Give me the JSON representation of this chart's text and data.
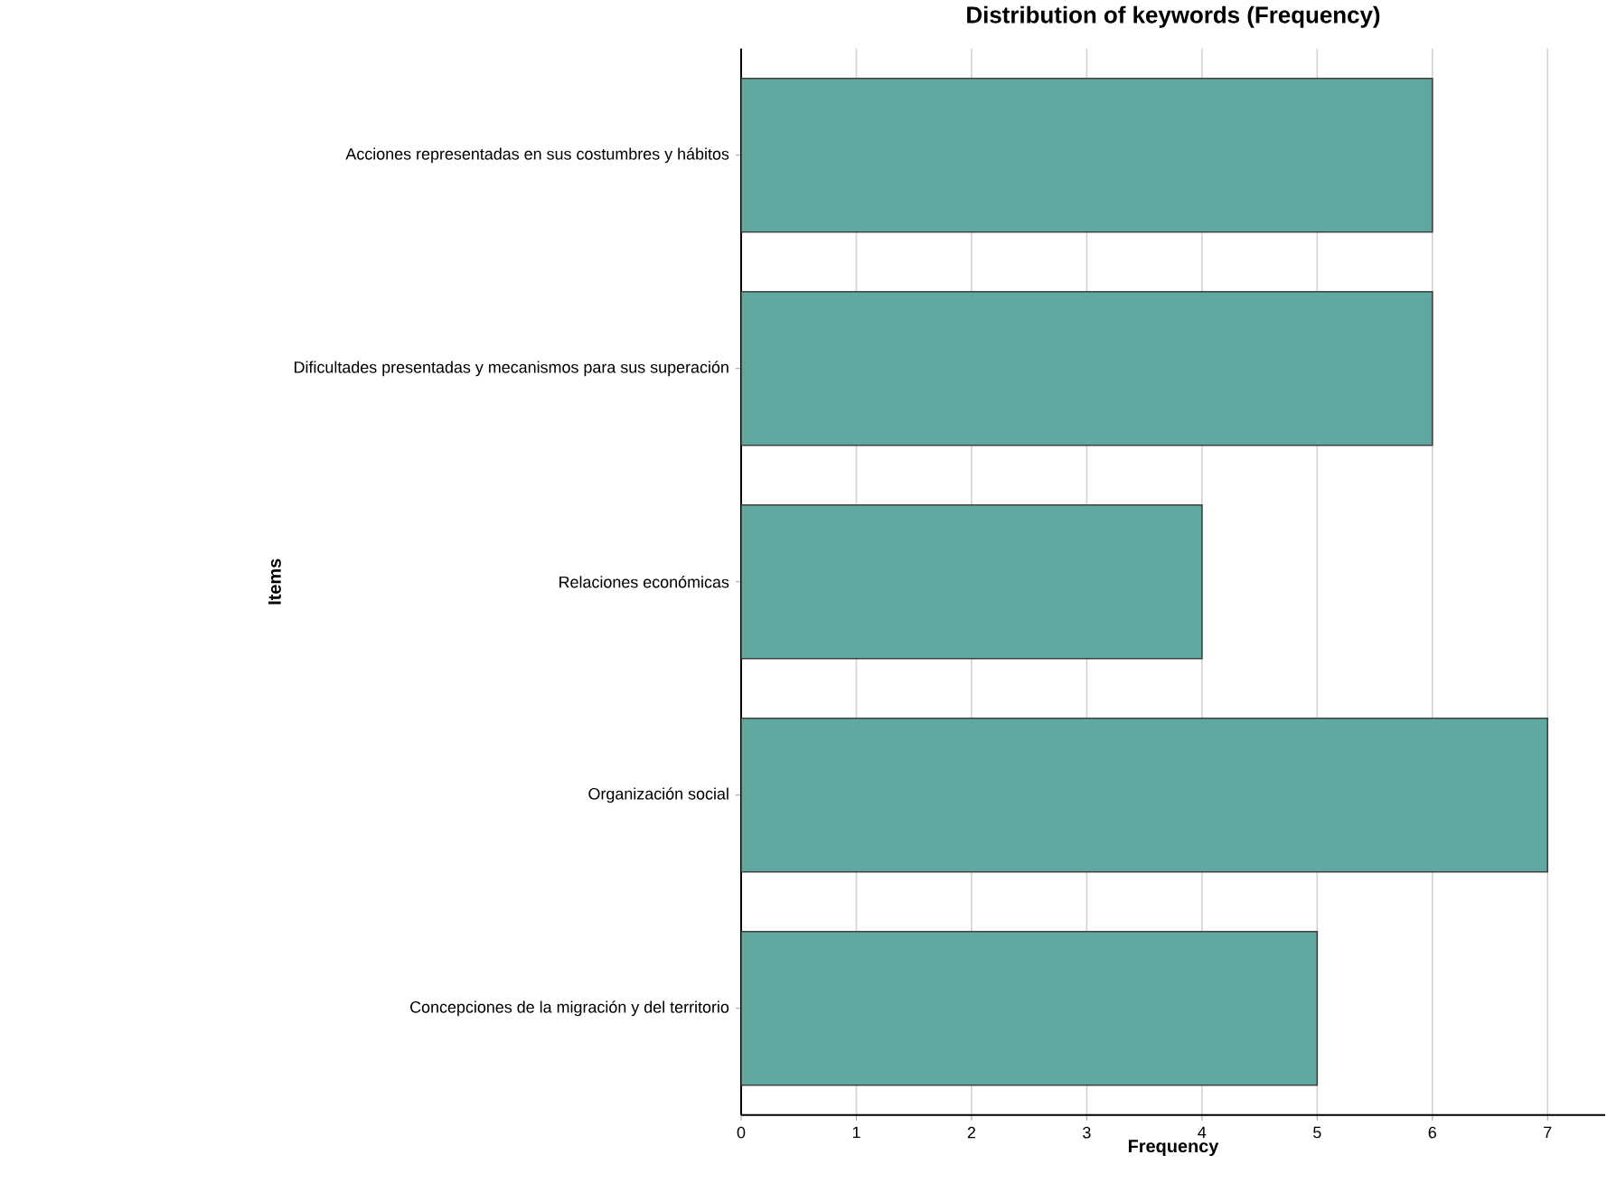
{
  "chart_data": {
    "type": "bar",
    "orientation": "horizontal",
    "title": "Distribution of keywords (Frequency)",
    "xlabel": "Frequency",
    "ylabel": "Items",
    "categories": [
      "Acciones representadas en sus costumbres y hábitos",
      "Dificultades presentadas y mecanismos para sus superación",
      "Relaciones económicas",
      "Organización social",
      "Concepciones de la migración y del territorio"
    ],
    "values": [
      6,
      6,
      4,
      7,
      5
    ],
    "color": "#5fa8a0",
    "xlim": [
      0,
      7.5
    ],
    "xticks": [
      0,
      1,
      2,
      3,
      4,
      5,
      6,
      7
    ],
    "grid": "x"
  }
}
